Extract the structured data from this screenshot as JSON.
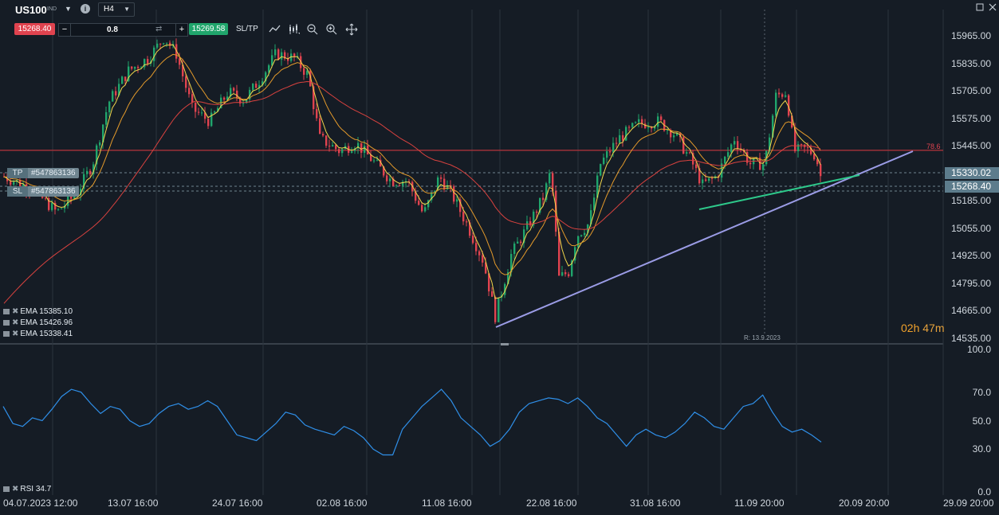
{
  "toolbar": {
    "symbol": "US100",
    "symbol_sub": "IND",
    "info_icon": "info-icon",
    "timeframe": "H4",
    "bid": "15268.40",
    "quantity": "0.8",
    "ask": "15269.58",
    "sltp_label": "SL/TP",
    "tools": [
      "line-chart-icon",
      "candle-type-icon",
      "zoom-out-icon",
      "zoom-in-icon",
      "crosshair-move-icon"
    ]
  },
  "price_axis": {
    "labels": [
      "15965.00",
      "15835.00",
      "15705.00",
      "15575.00",
      "15445.00",
      "15185.00",
      "15055.00",
      "14925.00",
      "14795.00",
      "14665.00",
      "14535.00"
    ],
    "ylim": [
      14535,
      15965
    ],
    "tags": [
      {
        "name": "tp-price-tag",
        "text": "15330.02",
        "color": "#6f8590"
      },
      {
        "name": "current-price-tag",
        "text": "15268.40",
        "color": "#6f8590"
      }
    ]
  },
  "rsi_axis": {
    "labels": [
      "100.0",
      "70.0",
      "50.0",
      "30.0",
      "0.0"
    ],
    "ylim": [
      0,
      100
    ]
  },
  "time_axis": {
    "labels": [
      "04.07.2023 12:00",
      "13.07 16:00",
      "24.07 16:00",
      "02.08 16:00",
      "11.08 16:00",
      "22.08 16:00",
      "31.08 16:00",
      "11.09 20:00",
      "20.09 20:00",
      "29.09 20:00"
    ]
  },
  "orders": [
    {
      "key": "TP",
      "id": "#547863136"
    },
    {
      "key": "SL",
      "id": "#547863136"
    }
  ],
  "ema_legend": [
    {
      "label": "EMA",
      "value": "15385.10"
    },
    {
      "label": "EMA",
      "value": "15426.96"
    },
    {
      "label": "EMA",
      "value": "15338.41"
    }
  ],
  "rsi_legend": {
    "label": "RSI",
    "value": "34.7"
  },
  "countdown": {
    "hours": "02h",
    "minutes": "47m"
  },
  "crosshair_label": "R: 13.9.2023",
  "level_label": "78.6",
  "colors": {
    "background": "#151c25",
    "bull": "#20a56c",
    "bear": "#e0434f",
    "ema_fast": "#f2d64b",
    "ema_mid": "#e39a2b",
    "ema_slow": "#d9423f",
    "trend_support": "#9b9ce6",
    "trend_green": "#2ec98b",
    "rsi": "#2f8fe8"
  },
  "chart_data": [
    {
      "type": "candlestick",
      "title": "US100 H4",
      "x": [
        "04.07.2023 12:00",
        "13.07 16:00",
        "24.07 16:00",
        "02.08 16:00",
        "11.08 16:00",
        "22.08 16:00",
        "31.08 16:00",
        "11.09 20:00"
      ],
      "close": [
        15280,
        15820,
        15800,
        15400,
        15200,
        14780,
        15520,
        15300
      ],
      "ylim": [
        14535,
        15965
      ],
      "last_price": 15268.4,
      "horizontal_level": 15420,
      "series": [
        {
          "name": "EMA",
          "value": 15385.1
        },
        {
          "name": "EMA",
          "value": 15426.96
        },
        {
          "name": "EMA",
          "value": 15338.41
        }
      ]
    },
    {
      "type": "line",
      "title": "RSI",
      "ylim": [
        0,
        100
      ],
      "last_value": 34.7,
      "values": [
        60,
        48,
        46,
        52,
        50,
        58,
        67,
        72,
        70,
        62,
        55,
        60,
        58,
        50,
        46,
        48,
        55,
        60,
        62,
        58,
        60,
        64,
        60,
        50,
        40,
        38,
        36,
        42,
        48,
        56,
        54,
        47,
        44,
        42,
        40,
        46,
        43,
        38,
        30,
        26,
        26,
        44,
        52,
        60,
        66,
        72,
        64,
        52,
        46,
        40,
        32,
        36,
        44,
        56,
        62,
        64,
        66,
        65,
        62,
        66,
        60,
        52,
        48,
        40,
        32,
        40,
        44,
        40,
        38,
        42,
        48,
        56,
        52,
        46,
        44,
        52,
        60,
        62,
        68,
        56,
        46,
        42,
        44,
        40,
        35
      ]
    }
  ]
}
